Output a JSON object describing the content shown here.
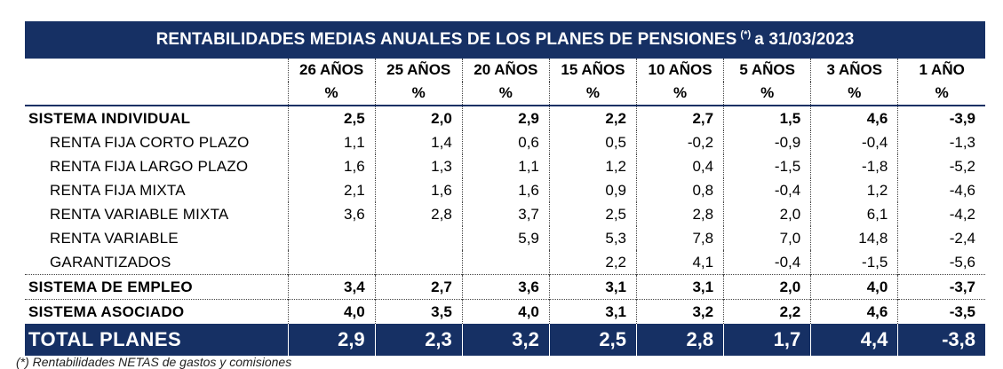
{
  "title": {
    "text": "RENTABILIDADES MEDIAS ANUALES DE LOS PLANES DE PENSIONES",
    "mark": "(*)",
    "date": "a 31/03/2023"
  },
  "columns": [
    {
      "period": "26 AÑOS",
      "unit": "%"
    },
    {
      "period": "25 AÑOS",
      "unit": "%"
    },
    {
      "period": "20 AÑOS",
      "unit": "%"
    },
    {
      "period": "15 AÑOS",
      "unit": "%"
    },
    {
      "period": "10 AÑOS",
      "unit": "%"
    },
    {
      "period": "5 AÑOS",
      "unit": "%"
    },
    {
      "period": "3 AÑOS",
      "unit": "%"
    },
    {
      "period": "1 AÑO",
      "unit": "%"
    }
  ],
  "rows": [
    {
      "label": "SISTEMA INDIVIDUAL",
      "values": [
        "2,5",
        "2,0",
        "2,9",
        "2,2",
        "2,7",
        "1,5",
        "4,6",
        "-3,9"
      ]
    },
    {
      "label": "RENTA FIJA CORTO PLAZO",
      "values": [
        "1,1",
        "1,4",
        "0,6",
        "0,5",
        "-0,2",
        "-0,9",
        "-0,4",
        "-1,3"
      ]
    },
    {
      "label": "RENTA FIJA LARGO PLAZO",
      "values": [
        "1,6",
        "1,3",
        "1,1",
        "1,2",
        "0,4",
        "-1,5",
        "-1,8",
        "-5,2"
      ]
    },
    {
      "label": "RENTA FIJA MIXTA",
      "values": [
        "2,1",
        "1,6",
        "1,6",
        "0,9",
        "0,8",
        "-0,4",
        "1,2",
        "-4,6"
      ]
    },
    {
      "label": "RENTA VARIABLE MIXTA",
      "values": [
        "3,6",
        "2,8",
        "3,7",
        "2,5",
        "2,8",
        "2,0",
        "6,1",
        "-4,2"
      ]
    },
    {
      "label": "RENTA VARIABLE",
      "values": [
        "",
        "",
        "5,9",
        "5,3",
        "7,8",
        "7,0",
        "14,8",
        "-2,4"
      ]
    },
    {
      "label": "GARANTIZADOS",
      "values": [
        "",
        "",
        "",
        "2,2",
        "4,1",
        "-0,4",
        "-1,5",
        "-5,6"
      ]
    },
    {
      "label": "SISTEMA DE EMPLEO",
      "values": [
        "3,4",
        "2,7",
        "3,6",
        "3,1",
        "3,1",
        "2,0",
        "4,0",
        "-3,7"
      ]
    },
    {
      "label": "SISTEMA ASOCIADO",
      "values": [
        "4,0",
        "3,5",
        "4,0",
        "3,1",
        "3,2",
        "2,2",
        "4,6",
        "-3,5"
      ]
    },
    {
      "label": "TOTAL PLANES",
      "values": [
        "2,9",
        "2,3",
        "3,2",
        "2,5",
        "2,8",
        "1,7",
        "4,4",
        "-3,8"
      ]
    }
  ],
  "footnote": "(*) Rentabilidades NETAS de gastos y comisiones",
  "colors": {
    "header_bg": "#163064",
    "header_text": "#ffffff"
  }
}
